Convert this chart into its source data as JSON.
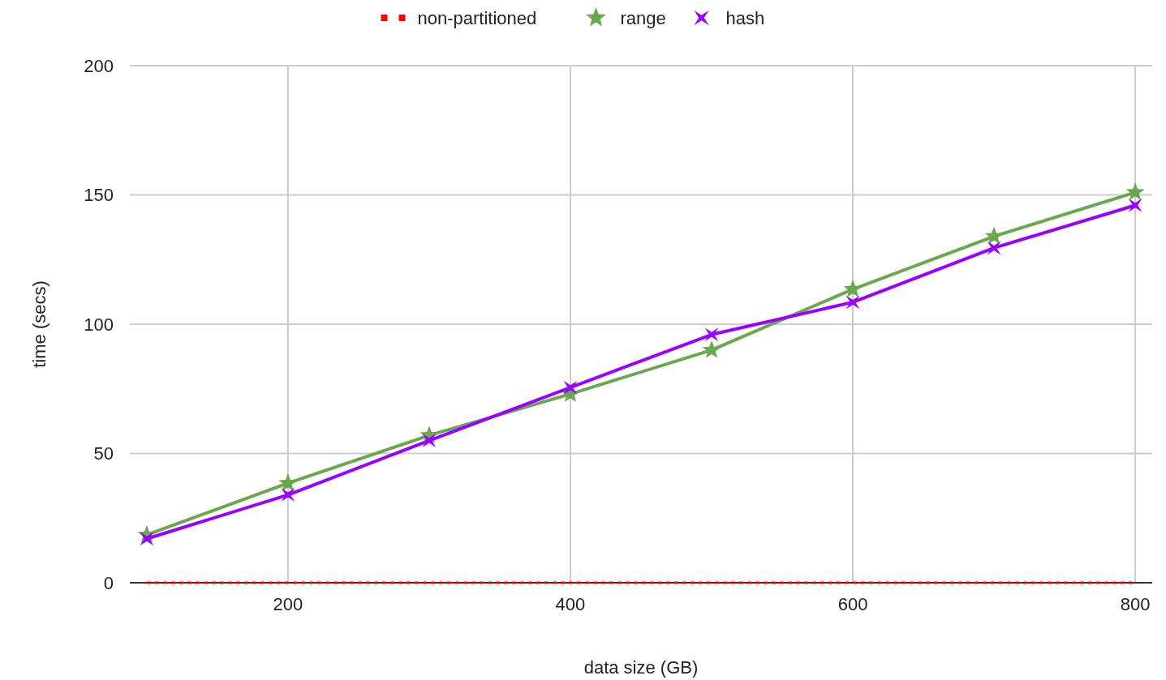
{
  "chart_data": {
    "type": "line",
    "xlabel": "data size (GB)",
    "ylabel": "time (secs)",
    "x": [
      100,
      200,
      300,
      400,
      500,
      600,
      700,
      800
    ],
    "xlim": [
      88,
      812
    ],
    "xticks": [
      200,
      400,
      600,
      800
    ],
    "ylim": [
      0,
      200
    ],
    "yticks": [
      0,
      50,
      100,
      150,
      200
    ],
    "grid": true,
    "legend": "top",
    "series": [
      {
        "name": "non-partitioned",
        "color": "#ff0000",
        "values": [
          0,
          0,
          0,
          0,
          0,
          0,
          0,
          0
        ],
        "line_style": "dotted",
        "marker": "none"
      },
      {
        "name": "range",
        "color": "#6aa84f",
        "values": [
          18.5,
          38.5,
          57,
          73,
          90,
          113.5,
          134,
          151
        ],
        "line_style": "solid",
        "marker": "star"
      },
      {
        "name": "hash",
        "color": "#9900ff",
        "values": [
          17,
          34,
          55,
          75.5,
          96,
          108.5,
          129.5,
          146
        ],
        "line_style": "solid",
        "marker": "cross"
      }
    ]
  }
}
